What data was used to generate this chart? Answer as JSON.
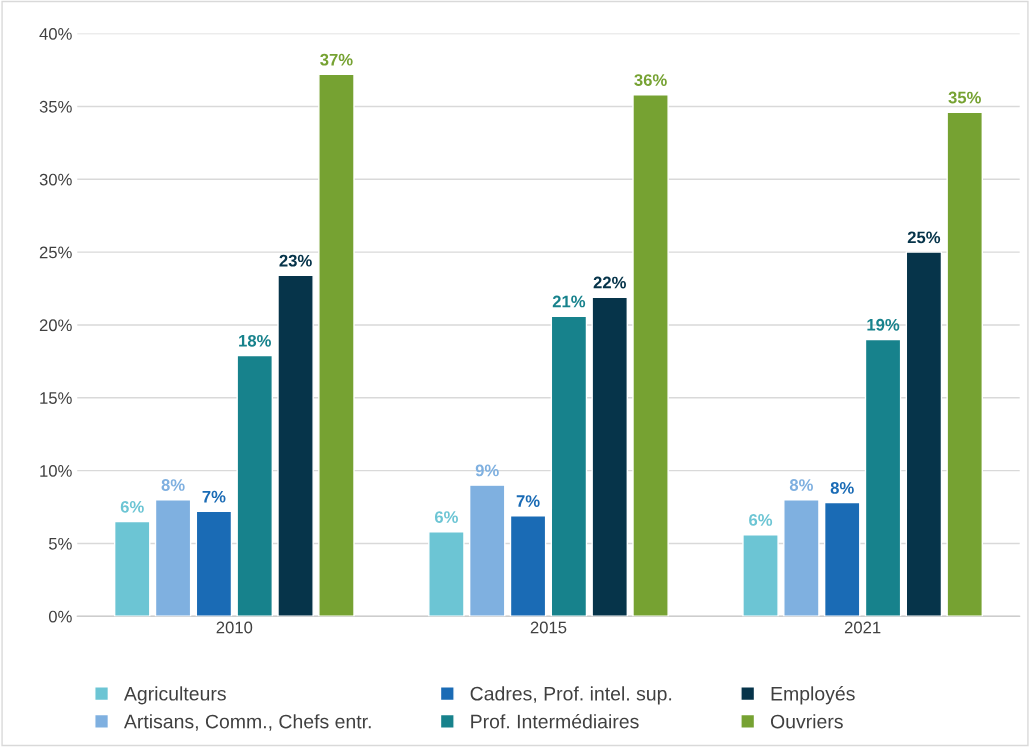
{
  "chart_data": {
    "type": "bar",
    "categories": [
      "2010",
      "2015",
      "2021"
    ],
    "series": [
      {
        "name": "Agriculteurs",
        "color": "#6cc5d4",
        "values": [
          6.5,
          5.8,
          5.6
        ],
        "value_labels": [
          "6%",
          "6%",
          "6%"
        ]
      },
      {
        "name": "Artisans, Comm., Chefs entr.",
        "color": "#7fb0e0",
        "values": [
          8.0,
          9.0,
          8.0
        ],
        "value_labels": [
          "8%",
          "9%",
          "8%"
        ]
      },
      {
        "name": "Cadres, Prof. intel. sup.",
        "color": "#1a6bb5",
        "values": [
          7.2,
          6.9,
          7.8
        ],
        "value_labels": [
          "7%",
          "7%",
          "8%"
        ]
      },
      {
        "name": "Prof. Intermédiaires",
        "color": "#17828c",
        "values": [
          17.9,
          20.6,
          19.0
        ],
        "value_labels": [
          "18%",
          "21%",
          "19%"
        ]
      },
      {
        "name": "Employés",
        "color": "#06344a",
        "values": [
          23.4,
          21.9,
          25.0
        ],
        "value_labels": [
          "23%",
          "22%",
          "25%"
        ]
      },
      {
        "name": "Ouvriers",
        "color": "#76a232",
        "values": [
          37.2,
          35.8,
          34.6
        ],
        "value_labels": [
          "37%",
          "36%",
          "35%"
        ]
      }
    ],
    "ylim": [
      0,
      40
    ],
    "yticks": [
      {
        "value": 0,
        "label": "0%"
      },
      {
        "value": 5,
        "label": "5%"
      },
      {
        "value": 10,
        "label": "10%"
      },
      {
        "value": 15,
        "label": "15%"
      },
      {
        "value": 20,
        "label": "20%"
      },
      {
        "value": 25,
        "label": "25%"
      },
      {
        "value": 30,
        "label": "30%"
      },
      {
        "value": 35,
        "label": "35%"
      },
      {
        "value": 40,
        "label": "40%"
      }
    ],
    "grid": "y",
    "legend": "bottom"
  }
}
